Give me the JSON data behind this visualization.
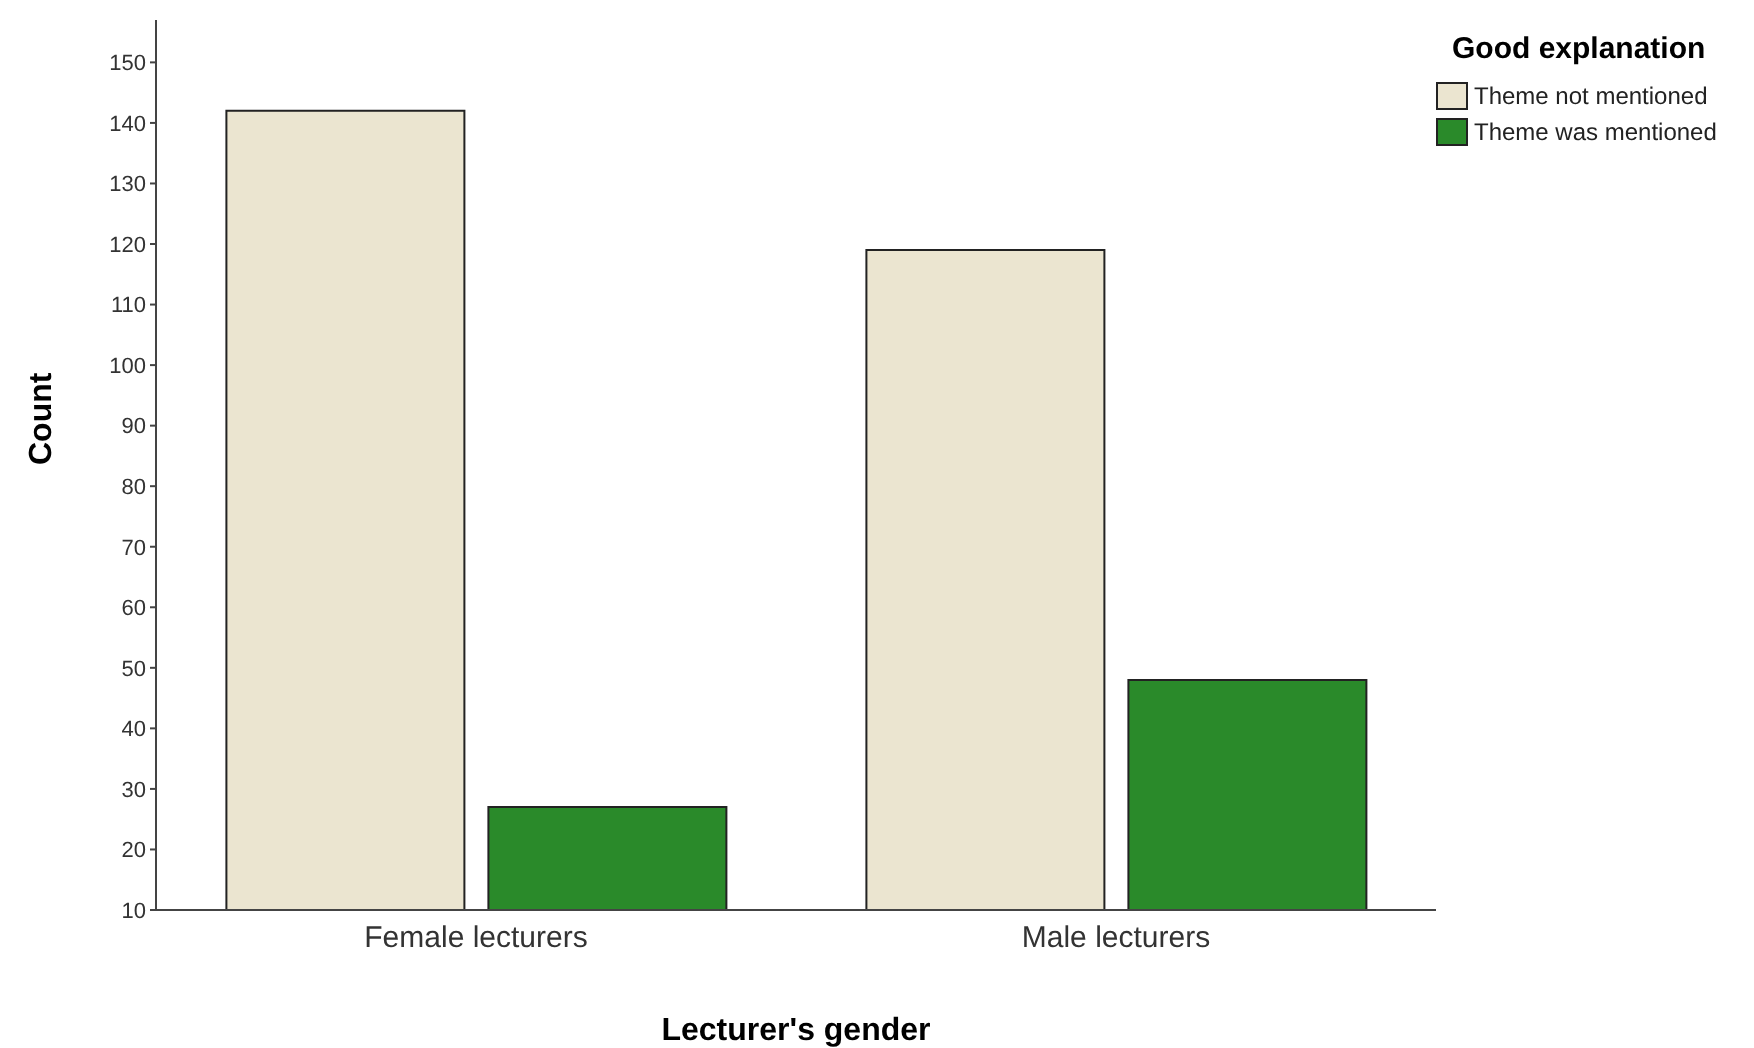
{
  "chart_data": {
    "type": "bar",
    "xlabel": "Lecturer's gender",
    "ylabel": "Count",
    "legend_title": "Good explanation",
    "legend": "top right",
    "grid": false,
    "categories": [
      "Female lecturers",
      "Male lecturers"
    ],
    "series": [
      {
        "name": "Theme not mentioned",
        "color": "#ebe5d0",
        "values": [
          142,
          119
        ]
      },
      {
        "name": "Theme was mentioned",
        "color": "#2a8a2a",
        "values": [
          27,
          48
        ]
      }
    ],
    "ylim": [
      10,
      157
    ],
    "yticks": [
      10,
      20,
      30,
      40,
      50,
      60,
      70,
      80,
      90,
      100,
      110,
      120,
      130,
      140,
      150
    ]
  }
}
